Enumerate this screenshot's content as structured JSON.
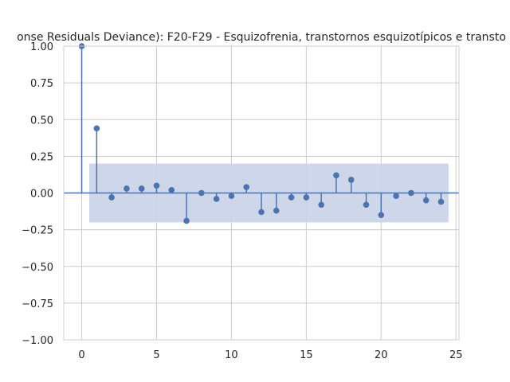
{
  "chart_data": {
    "type": "stem",
    "title": "onse Residuals Deviance): F20-F29 - Esquizofrenia, transtornos esquizotípicos e transto",
    "xlabel": "",
    "ylabel": "",
    "xlim": [
      -1.2,
      25.2
    ],
    "ylim": [
      -1.0,
      1.0
    ],
    "xticks": [
      "0",
      "5",
      "10",
      "15",
      "20",
      "25"
    ],
    "yticks": [
      "−1.00",
      "−0.75",
      "−0.50",
      "−0.25",
      "0.00",
      "0.25",
      "0.50",
      "0.75",
      "1.00"
    ],
    "grid": true,
    "lags": [
      0,
      1,
      2,
      3,
      4,
      5,
      6,
      7,
      8,
      9,
      10,
      11,
      12,
      13,
      14,
      15,
      16,
      17,
      18,
      19,
      20,
      21,
      22,
      23,
      24
    ],
    "values": [
      1.0,
      0.44,
      -0.03,
      0.03,
      0.03,
      0.05,
      0.02,
      -0.19,
      0.0,
      -0.04,
      -0.02,
      0.04,
      -0.13,
      -0.12,
      -0.03,
      -0.03,
      -0.08,
      0.12,
      0.09,
      -0.08,
      -0.15,
      -0.02,
      0.0,
      -0.05,
      -0.06
    ],
    "confidence_band": {
      "x_range": [
        0.5,
        24.5
      ],
      "upper": 0.2,
      "lower": -0.2
    },
    "colors": {
      "stem": "#4c72b0",
      "band": "#c9d3e8",
      "grid": "#cccccc",
      "axes": "#cccccc"
    }
  }
}
